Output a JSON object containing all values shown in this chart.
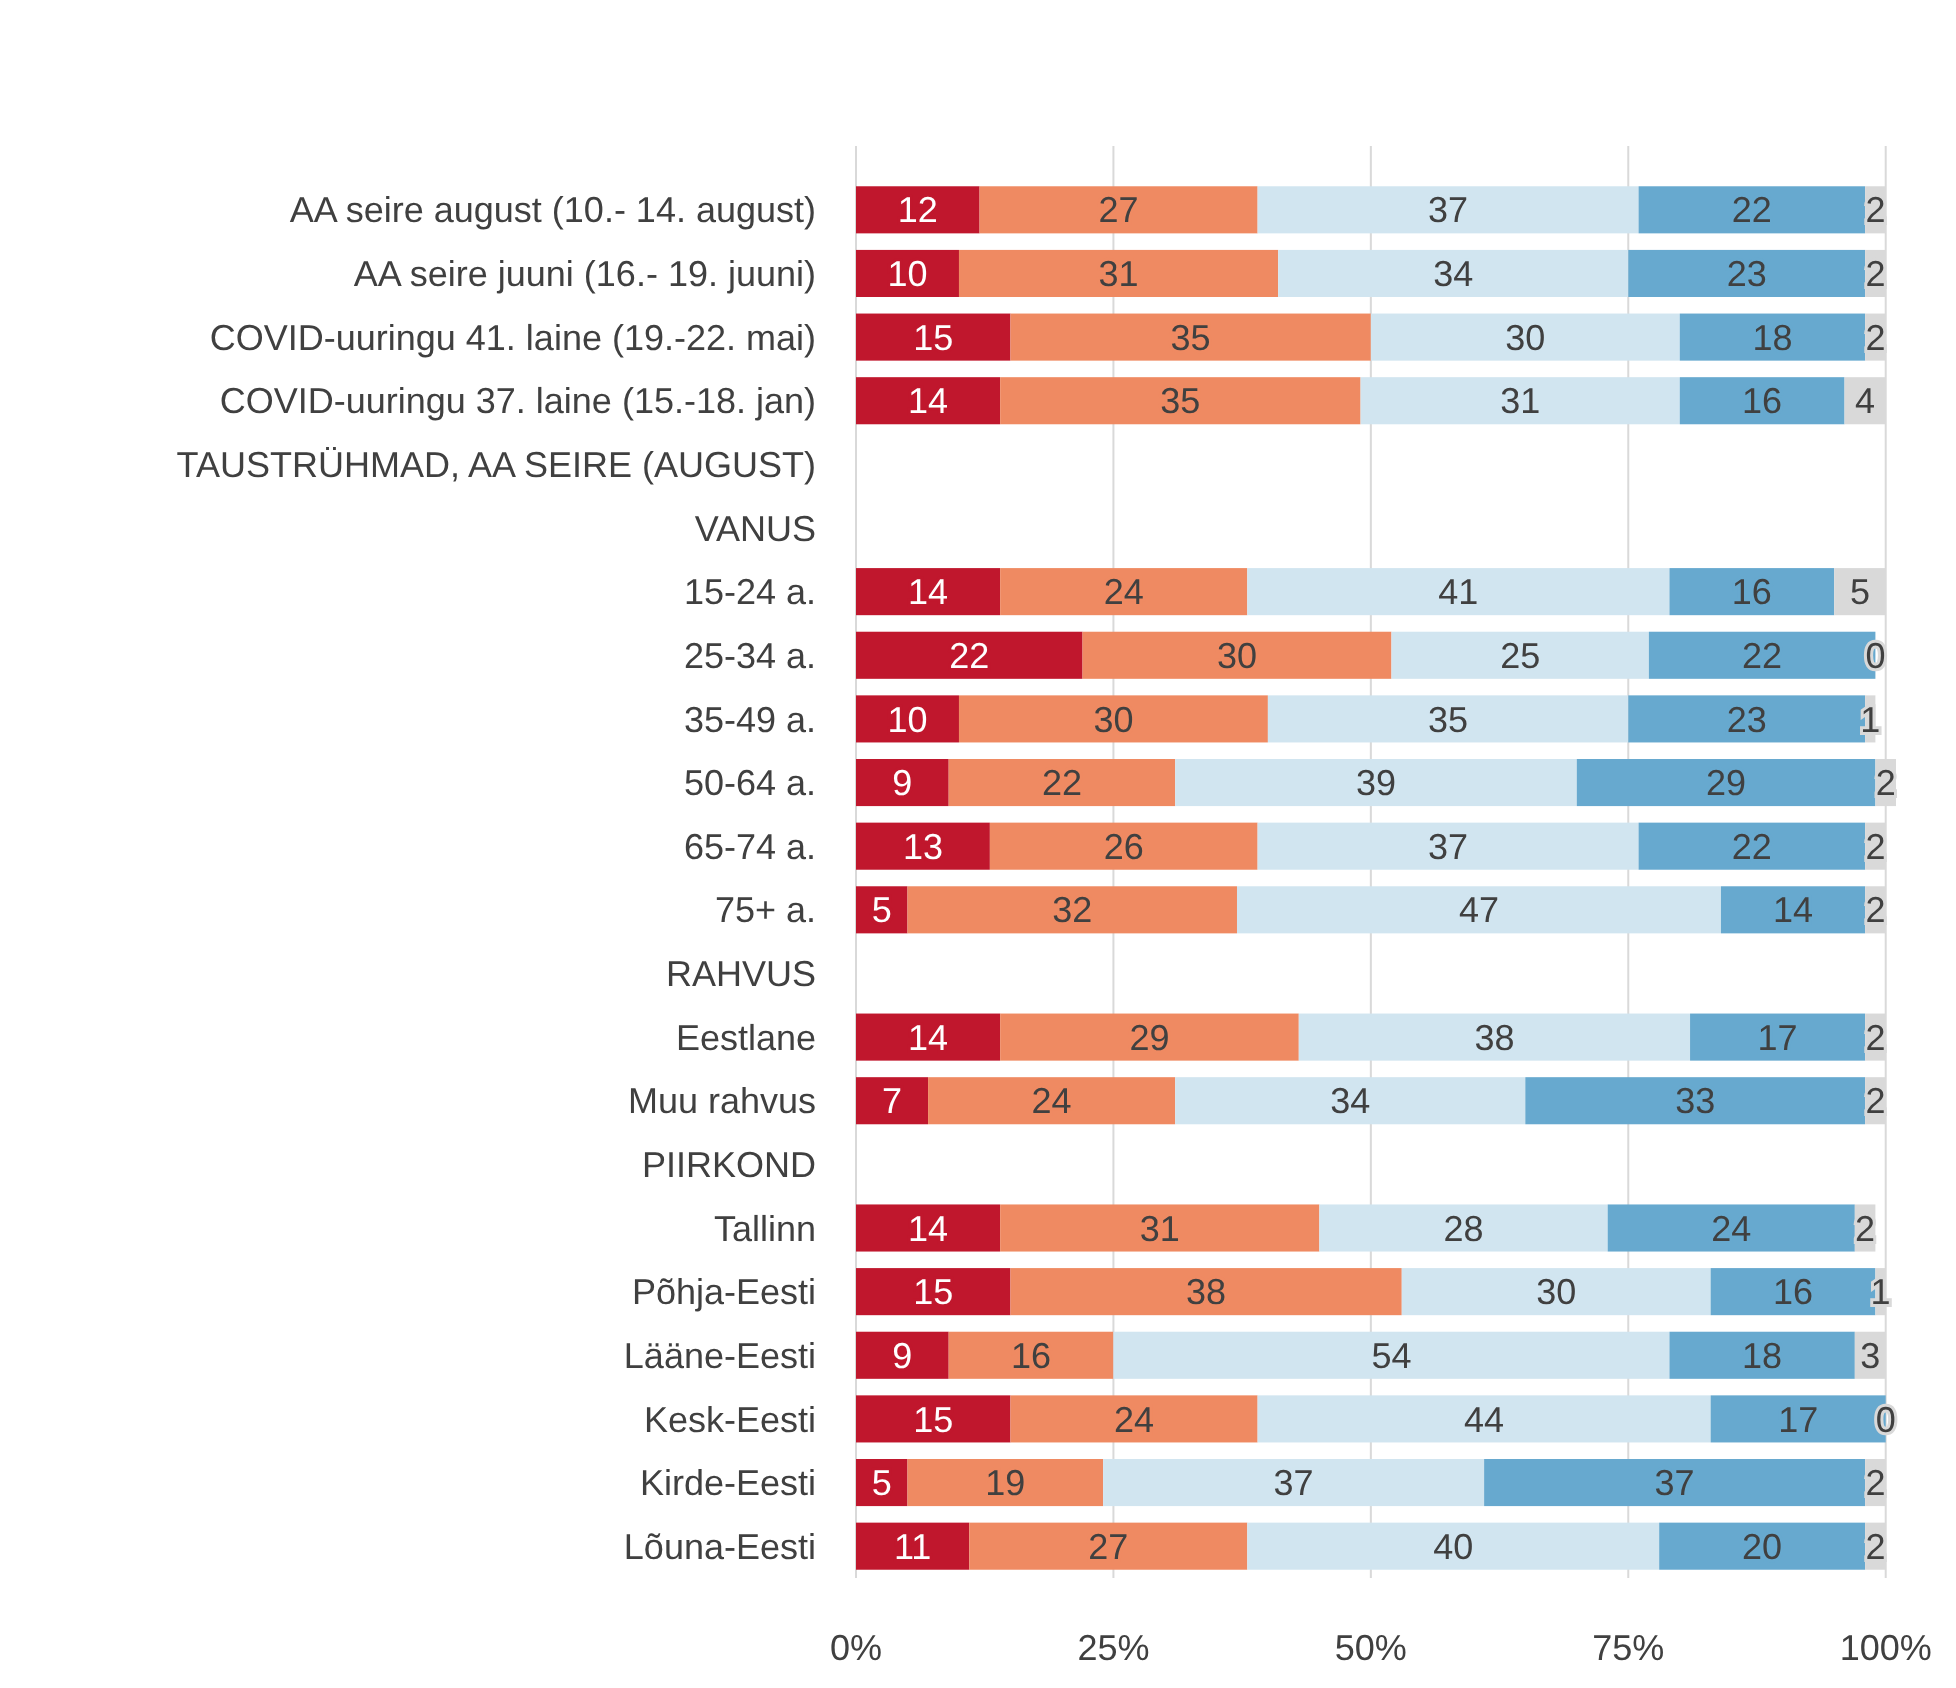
{
  "chart_data": {
    "type": "bar",
    "orientation": "horizontal",
    "stacked": true,
    "data_labels": true,
    "grid": "x",
    "categories": [
      "AA seire august (10.- 14. august)",
      "AA seire juuni (16.- 19. juuni)",
      "COVID-uuringu 41. laine (19.-22. mai)",
      "COVID-uuringu 37. laine (15.-18. jan)",
      "TAUSTRÜHMAD, AA SEIRE (AUGUST)",
      "VANUS",
      "15-24 a.",
      "25-34 a.",
      "35-49 a.",
      "50-64 a.",
      "65-74 a.",
      "75+ a.",
      "RAHVUS",
      "Eestlane",
      "Muu rahvus",
      "PIIRKOND",
      "Tallinn",
      "Põhja-Eesti",
      "Lääne-Eesti",
      "Kesk-Eesti",
      "Kirde-Eesti",
      "Lõuna-Eesti"
    ],
    "series": [
      {
        "color": "#c0172d",
        "values": [
          12,
          10,
          15,
          14,
          null,
          null,
          14,
          22,
          10,
          9,
          13,
          5,
          null,
          14,
          7,
          null,
          14,
          15,
          9,
          15,
          5,
          11
        ]
      },
      {
        "color": "#ef8a62",
        "values": [
          27,
          31,
          35,
          35,
          null,
          null,
          24,
          30,
          30,
          22,
          26,
          32,
          null,
          29,
          24,
          null,
          31,
          38,
          16,
          24,
          19,
          27
        ]
      },
      {
        "color": "#d1e5f0",
        "values": [
          37,
          34,
          30,
          31,
          null,
          null,
          41,
          25,
          35,
          39,
          37,
          47,
          null,
          38,
          34,
          null,
          28,
          30,
          54,
          44,
          37,
          40
        ]
      },
      {
        "color": "#67a9cf",
        "values": [
          22,
          23,
          18,
          16,
          null,
          null,
          16,
          22,
          23,
          29,
          22,
          14,
          null,
          17,
          33,
          null,
          24,
          16,
          18,
          17,
          37,
          20
        ]
      },
      {
        "color": "#d9d9d9",
        "values": [
          2,
          2,
          2,
          4,
          null,
          null,
          5,
          0,
          1,
          2,
          2,
          2,
          null,
          2,
          2,
          null,
          2,
          1,
          3,
          0,
          2,
          2
        ]
      }
    ],
    "xlim": [
      0,
      101
    ],
    "xticks": [
      {
        "value": 0,
        "label": "0%"
      },
      {
        "value": 25,
        "label": "25%"
      },
      {
        "value": 50,
        "label": "50%"
      },
      {
        "value": 75,
        "label": "75%"
      },
      {
        "value": 100,
        "label": "100%"
      }
    ]
  }
}
